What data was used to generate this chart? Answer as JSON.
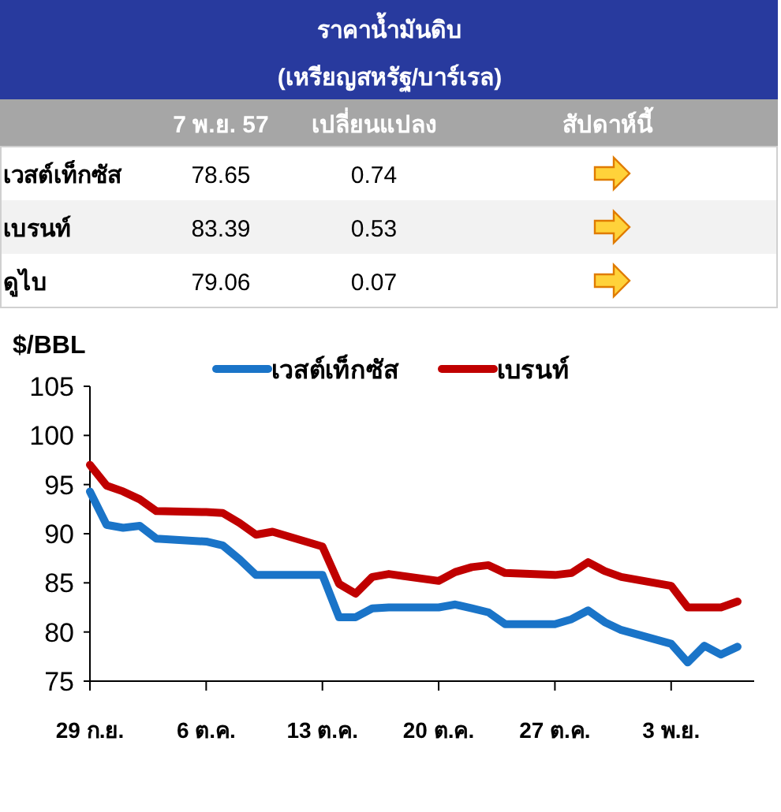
{
  "chart_data": [
    {
      "type": "other",
      "title": "ราคาน้ำมันดิบ",
      "subtitle": "(เหรียญสหรัฐ/บาร์เรล)",
      "annotations": [
        "7 พ.ย. 57",
        "เปลี่ยนแปลง",
        "สัปดาห์นี้",
        "เวสต์เท็กซัส",
        "78.65",
        "0.74",
        "เบรนท์",
        "83.39",
        "0.53",
        "ดูไบ",
        "79.06",
        "0.07"
      ]
    },
    {
      "type": "line",
      "ylabel": "$/BBL",
      "legend": "top",
      "grid": false,
      "marker": "none",
      "line_style": "solid",
      "x": [
        "--09-29",
        "--09-30",
        "--10-01",
        "--10-02",
        "--10-03",
        "--10-06",
        "--10-07",
        "--10-08",
        "--10-09",
        "--10-10",
        "--10-13",
        "--10-14",
        "--10-15",
        "--10-16",
        "--10-17",
        "--10-20",
        "--10-21",
        "--10-22",
        "--10-23",
        "--10-24",
        "--10-27",
        "--10-28",
        "--10-29",
        "--10-30",
        "--10-31",
        "--11-03",
        "--11-04",
        "--11-05",
        "--11-06",
        "--11-07"
      ],
      "series": [
        {
          "name": "เวสต์เท็กซัส",
          "color": "#1a74c8",
          "values": [
            94.3,
            90.9,
            90.6,
            90.8,
            89.5,
            89.2,
            88.8,
            87.4,
            85.8,
            85.8,
            85.8,
            81.5,
            81.5,
            82.4,
            82.5,
            82.5,
            82.8,
            82.4,
            82.0,
            80.8,
            80.8,
            81.3,
            82.2,
            81.0,
            80.2,
            78.8,
            76.9,
            78.6,
            77.7,
            78.5
          ]
        },
        {
          "name": "เบรนท์",
          "color": "#c00000",
          "values": [
            97.0,
            94.9,
            94.3,
            93.5,
            92.3,
            92.2,
            92.1,
            91.1,
            89.9,
            90.2,
            88.7,
            84.9,
            83.9,
            85.6,
            85.9,
            85.2,
            86.1,
            86.6,
            86.8,
            86.0,
            85.8,
            86.0,
            87.1,
            86.2,
            85.6,
            84.7,
            82.5,
            82.5,
            82.5,
            83.1
          ]
        }
      ],
      "xlim": [
        "--09-29",
        "--11-08"
      ],
      "xticks": [
        {
          "value": "--09-29",
          "label": "29 ก.ย."
        },
        {
          "value": "--10-06",
          "label": "6 ต.ค."
        },
        {
          "value": "--10-13",
          "label": "13 ต.ค."
        },
        {
          "value": "--10-20",
          "label": "20 ต.ค."
        },
        {
          "value": "--10-27",
          "label": "27 ต.ค."
        },
        {
          "value": "--11-03",
          "label": "3 พ.ย."
        }
      ],
      "ylim": [
        75,
        105
      ],
      "yticks": [
        75,
        80,
        85,
        90,
        95,
        100,
        105
      ]
    }
  ]
}
